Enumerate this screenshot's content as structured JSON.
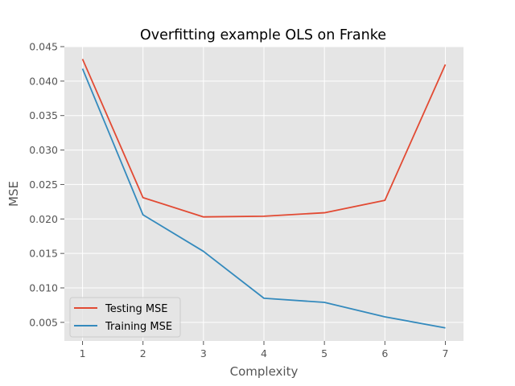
{
  "chart_data": {
    "type": "line",
    "title": "Overfitting example OLS on Franke",
    "xlabel": "Complexity",
    "ylabel": "MSE",
    "x": [
      1,
      2,
      3,
      4,
      5,
      6,
      7
    ],
    "x_ticks": [
      "1",
      "2",
      "3",
      "4",
      "5",
      "6",
      "7"
    ],
    "y_ticks": [
      "0.005",
      "0.010",
      "0.015",
      "0.020",
      "0.025",
      "0.030",
      "0.035",
      "0.040",
      "0.045"
    ],
    "y_tick_values": [
      0.005,
      0.01,
      0.015,
      0.02,
      0.025,
      0.03,
      0.035,
      0.04,
      0.045
    ],
    "xlim": [
      0.7,
      7.3
    ],
    "ylim": [
      0.0023,
      0.045
    ],
    "grid": true,
    "legend_position": "lower-left",
    "series": [
      {
        "name": "Testing MSE",
        "color": "#E24A33",
        "values": [
          0.0432,
          0.0231,
          0.0203,
          0.0204,
          0.0209,
          0.0227,
          0.0424
        ]
      },
      {
        "name": "Training MSE",
        "color": "#348ABD",
        "values": [
          0.0418,
          0.0206,
          0.0153,
          0.0085,
          0.0079,
          0.0058,
          0.0042
        ]
      }
    ],
    "style": {
      "plot_background": "#E5E5E5",
      "grid_color": "#FFFFFF",
      "text_color": "#555555",
      "title_color": "#000000"
    }
  }
}
